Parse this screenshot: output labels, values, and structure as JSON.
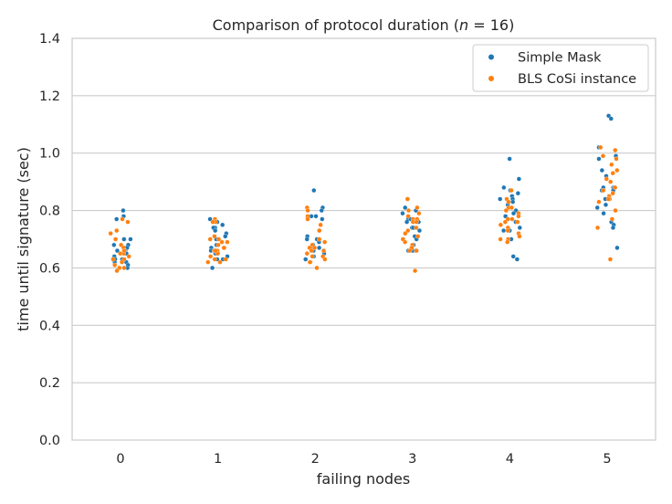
{
  "chart_data": {
    "type": "scatter",
    "title": "Comparison of protocol duration (",
    "title_n": "n",
    "title_tail": " = 16)",
    "xlabel": "failing nodes",
    "ylabel": "time until signature (sec)",
    "categories": [
      "0",
      "1",
      "2",
      "3",
      "4",
      "5"
    ],
    "ylim": [
      0.0,
      1.4
    ],
    "yticks": [
      "0.0",
      "0.2",
      "0.4",
      "0.6",
      "0.8",
      "1.0",
      "1.2",
      "1.4"
    ],
    "grid": true,
    "legend_position": "top-right",
    "series": [
      {
        "name": "Simple Mask",
        "color": "#1f77b4",
        "values": [
          [
            0.78,
            0.77,
            0.8,
            0.7,
            0.7,
            0.7,
            0.68,
            0.68,
            0.67,
            0.67,
            0.66,
            0.66,
            0.65,
            0.64,
            0.63,
            0.63,
            0.62,
            0.62,
            0.61,
            0.6
          ],
          [
            0.77,
            0.76,
            0.75,
            0.74,
            0.74,
            0.73,
            0.72,
            0.71,
            0.7,
            0.68,
            0.67,
            0.67,
            0.66,
            0.66,
            0.65,
            0.65,
            0.64,
            0.63,
            0.63,
            0.6
          ],
          [
            0.87,
            0.81,
            0.8,
            0.78,
            0.78,
            0.77,
            0.73,
            0.71,
            0.7,
            0.7,
            0.69,
            0.68,
            0.67,
            0.67,
            0.67,
            0.66,
            0.66,
            0.65,
            0.64,
            0.63
          ],
          [
            0.84,
            0.81,
            0.8,
            0.79,
            0.78,
            0.77,
            0.77,
            0.76,
            0.76,
            0.74,
            0.74,
            0.73,
            0.71,
            0.7,
            0.7,
            0.68,
            0.67,
            0.66,
            0.66,
            0.66
          ],
          [
            0.98,
            0.91,
            0.88,
            0.87,
            0.86,
            0.85,
            0.84,
            0.84,
            0.83,
            0.82,
            0.8,
            0.79,
            0.78,
            0.76,
            0.74,
            0.73,
            0.73,
            0.7,
            0.64,
            0.63
          ],
          [
            1.13,
            1.12,
            1.02,
            0.99,
            0.98,
            0.94,
            0.92,
            0.88,
            0.88,
            0.88,
            0.87,
            0.87,
            0.84,
            0.82,
            0.81,
            0.79,
            0.76,
            0.75,
            0.74,
            0.67
          ]
        ]
      },
      {
        "name": "BLS CoSi instance",
        "color": "#ff7f0e",
        "values": [
          [
            0.77,
            0.76,
            0.73,
            0.72,
            0.7,
            0.68,
            0.67,
            0.66,
            0.66,
            0.65,
            0.65,
            0.64,
            0.63,
            0.63,
            0.62,
            0.61,
            0.6,
            0.6,
            0.59,
            0.66
          ],
          [
            0.77,
            0.76,
            0.76,
            0.71,
            0.7,
            0.7,
            0.69,
            0.69,
            0.68,
            0.67,
            0.67,
            0.66,
            0.66,
            0.65,
            0.64,
            0.63,
            0.63,
            0.62,
            0.62,
            0.66
          ],
          [
            0.81,
            0.8,
            0.78,
            0.77,
            0.75,
            0.73,
            0.7,
            0.68,
            0.67,
            0.67,
            0.66,
            0.66,
            0.65,
            0.64,
            0.64,
            0.63,
            0.62,
            0.62,
            0.6,
            0.69
          ],
          [
            0.84,
            0.81,
            0.8,
            0.79,
            0.78,
            0.77,
            0.77,
            0.76,
            0.76,
            0.74,
            0.73,
            0.72,
            0.71,
            0.7,
            0.69,
            0.68,
            0.67,
            0.66,
            0.66,
            0.59
          ],
          [
            0.87,
            0.84,
            0.83,
            0.81,
            0.81,
            0.8,
            0.79,
            0.78,
            0.77,
            0.77,
            0.76,
            0.76,
            0.75,
            0.74,
            0.73,
            0.72,
            0.71,
            0.7,
            0.7,
            0.69
          ],
          [
            1.02,
            1.01,
            0.99,
            0.98,
            0.96,
            0.94,
            0.93,
            0.91,
            0.9,
            0.88,
            0.87,
            0.86,
            0.85,
            0.84,
            0.84,
            0.83,
            0.8,
            0.77,
            0.74,
            0.63
          ]
        ]
      }
    ]
  }
}
